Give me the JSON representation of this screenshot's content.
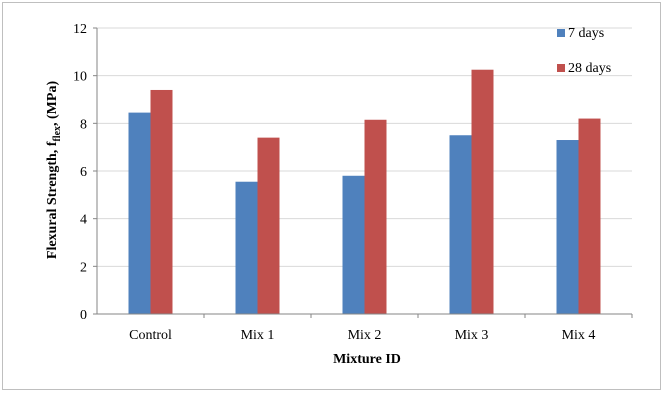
{
  "chart_data": {
    "type": "bar",
    "categories": [
      "Control",
      "Mix 1",
      "Mix 2",
      "Mix 3",
      "Mix 4"
    ],
    "series": [
      {
        "name": "7 days",
        "values": [
          8.45,
          5.55,
          5.8,
          7.5,
          7.3
        ],
        "color": "#4f81bd"
      },
      {
        "name": "28 days",
        "values": [
          9.4,
          7.4,
          8.15,
          10.25,
          8.2
        ],
        "color": "#c0504d"
      }
    ],
    "title": "",
    "xlabel": "Mixture ID",
    "ylabel_main": "Flexural Strength, f",
    "ylabel_sub": "flex",
    "ylabel_tail": ", (MPa)",
    "ylim": [
      0,
      12
    ],
    "yticks": [
      "0",
      "2",
      "4",
      "6",
      "8",
      "10",
      "12"
    ],
    "grid": true,
    "legend_position": "top-right"
  }
}
